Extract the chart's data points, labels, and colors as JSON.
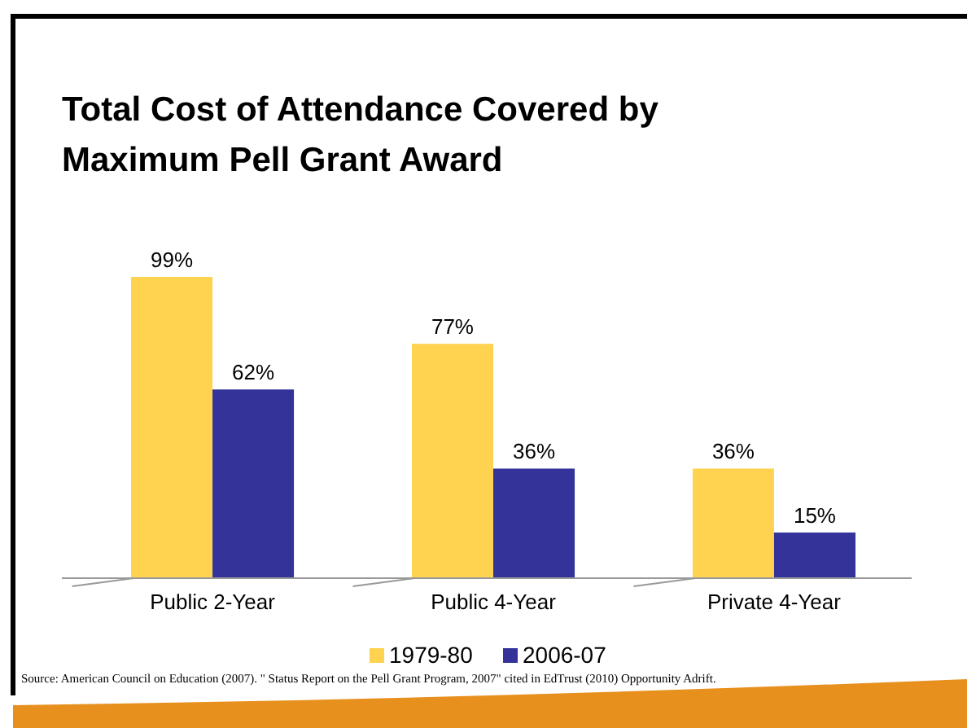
{
  "chart_data": {
    "type": "bar",
    "title": "Total Cost of Attendance Covered by Maximum Pell Grant Award",
    "categories": [
      "Public 2-Year",
      "Public 4-Year",
      "Private 4-Year"
    ],
    "series": [
      {
        "name": "1979-80",
        "color": "#ffd24f",
        "values": [
          99,
          77,
          36
        ],
        "value_labels": [
          "99%",
          "77%",
          "36%"
        ]
      },
      {
        "name": "2006-07",
        "color": "#333399",
        "values": [
          62,
          36,
          15
        ],
        "value_labels": [
          "62%",
          "36%",
          "15%"
        ]
      }
    ],
    "legend": "bottom",
    "grid": false,
    "annotations": [
      "Source: American Council on Education (2007). \" Status Report on the Pell Grant Program, 2007\" cited in EdTrust (2010) Opportunity Adrift."
    ]
  }
}
